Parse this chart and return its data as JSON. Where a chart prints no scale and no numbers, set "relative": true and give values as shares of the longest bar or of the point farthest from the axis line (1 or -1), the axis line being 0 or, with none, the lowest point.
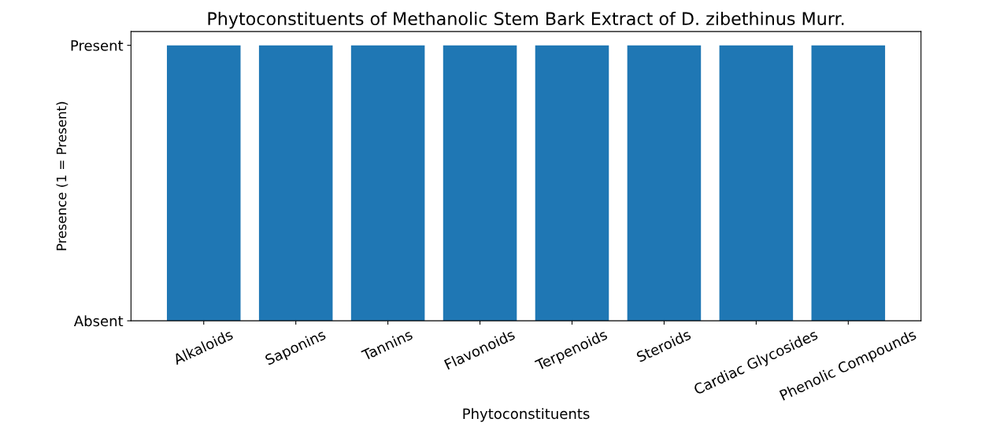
{
  "chart_data": {
    "type": "bar",
    "title": "Phytoconstituents of Methanolic Stem Bark Extract of D. zibethinus Murr.",
    "xlabel": "Phytoconstituents",
    "ylabel": "Presence (1 = Present)",
    "categories": [
      "Alkaloids",
      "Saponins",
      "Tannins",
      "Flavonoids",
      "Terpenoids",
      "Steroids",
      "Cardiac Glycosides",
      "Phenolic Compounds"
    ],
    "values": [
      1,
      1,
      1,
      1,
      1,
      1,
      1,
      1
    ],
    "color": "#1f77b4",
    "relative": true,
    "annotations": [
      "Absent",
      "Present"
    ],
    "grid": false,
    "legend": false
  }
}
